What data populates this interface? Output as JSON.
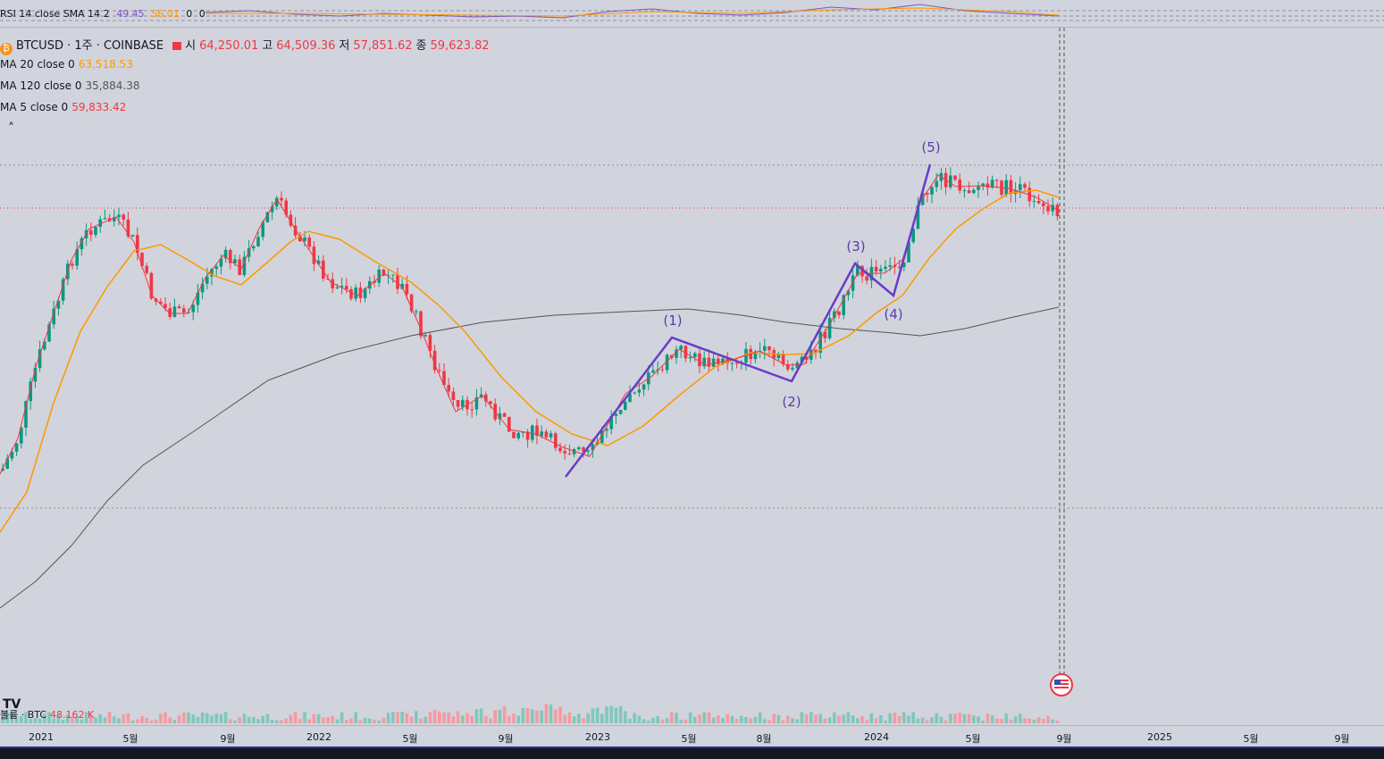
{
  "rsi_legend": {
    "label": "RSI 14 close SMA 14 2",
    "rsi": "49.45",
    "sma": "56.01",
    "v1": "0",
    "v2": "0"
  },
  "symbol": {
    "title": "BTCUSD · 1주 · COINBASE",
    "open_label": "시",
    "open": "64,250.01",
    "high_label": "고",
    "high": "64,509.36",
    "low_label": "저",
    "low": "57,851.62",
    "close_label": "종",
    "close": "59,623.82"
  },
  "ma_legend": [
    {
      "label": "MA 20 close 0",
      "value": "63,518.53",
      "color": "#ff9800"
    },
    {
      "label": "MA 120 close 0",
      "value": "35,884.38",
      "color": "#555555"
    },
    {
      "label": "MA 5 close 0",
      "value": "59,833.42",
      "color": "#f23645"
    }
  ],
  "collapse_glyph": "˄",
  "volume_legend": {
    "label": "볼륨 · BTC",
    "value": "48.162 K"
  },
  "x_ticks": [
    "2021",
    "5월",
    "9월",
    "2022",
    "5월",
    "9월",
    "2023",
    "5월",
    "8월",
    "2024",
    "5월",
    "9월",
    "2025",
    "5월",
    "9월"
  ],
  "elliott_labels": [
    "(1)",
    "(2)",
    "(3)",
    "(4)",
    "(5)"
  ],
  "colors": {
    "up": "#089981",
    "down": "#f23645",
    "ma20": "#ff9800",
    "ma120": "#555555",
    "ma5": "#f23645",
    "wave": "#6a3cc8",
    "rsi": "#7e57c2"
  },
  "chart_data": {
    "type": "line",
    "series": [
      {
        "name": "BTCUSD close",
        "values": [
          30000,
          47000,
          58000,
          57000,
          49000,
          36000,
          33000,
          42000,
          47000,
          62000,
          57000,
          47000,
          38000,
          44000,
          40000,
          30000,
          20000,
          20000,
          19000,
          16000,
          23000,
          28000,
          27000,
          29500,
          26500,
          26000,
          34000,
          37500,
          43000,
          52000,
          71000,
          64000,
          67000,
          57000,
          59623.82
        ]
      },
      {
        "name": "MA 20",
        "values": [
          20000,
          33000,
          45000,
          50000,
          49000,
          46000,
          43000,
          41000,
          45000,
          50000,
          52000,
          51000,
          46000,
          43000,
          40000,
          33000,
          27000,
          22000,
          20000,
          19500,
          19000,
          22000,
          25000,
          27000,
          28000,
          28000,
          30000,
          34000,
          38000,
          45000,
          55000,
          61000,
          64000,
          64500,
          63518.53
        ]
      },
      {
        "name": "MA 120",
        "values": [
          5000,
          9000,
          13000,
          17000,
          21000,
          24000,
          26000,
          28000,
          30000,
          31000,
          32000,
          32500,
          33000,
          33000,
          33000,
          32500,
          32000,
          31500,
          31000,
          30500,
          30000,
          29500,
          29000,
          28500,
          28500,
          28500,
          28500,
          28500,
          28500,
          28500,
          29000,
          30500,
          32500,
          34500,
          35884.38
        ]
      }
    ],
    "volume": {
      "last": "48.162 K"
    }
  }
}
